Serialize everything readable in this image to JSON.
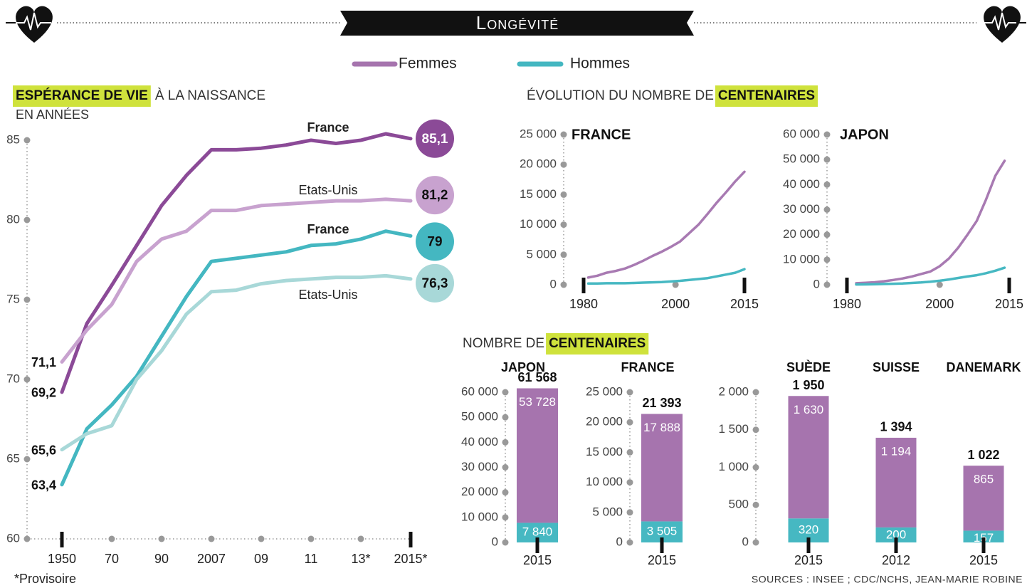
{
  "header": {
    "title": "Longévité"
  },
  "legend": [
    {
      "name": "Femmes",
      "color": "#a674ae"
    },
    {
      "name": "Hommes",
      "color": "#44b7c1"
    }
  ],
  "highlight_color": "#cfe23c",
  "sections": [
    {
      "title_parts": [
        {
          "text": "ÉVOLUTION DU NOMBRE DE"
        },
        {
          "text": "CENTENAIRES",
          "highlight": true
        }
      ]
    },
    {
      "title_parts": [
        {
          "text": "NOMBRE DE"
        },
        {
          "text": "CENTENAIRES",
          "highlight": true
        }
      ]
    }
  ],
  "sources": "SOURCES : INSEE ; CDC/NCHS, JEAN-MARIE ROBINE",
  "chart_data": [
    {
      "type": "line",
      "title_parts": [
        {
          "text": "ESPÉRANCE DE VIE",
          "highlight": true
        },
        {
          "text": "À LA NAISSANCE"
        }
      ],
      "subtitle": "EN ANNÉES",
      "note": "*Provisoire",
      "categories": [
        "1950",
        null,
        "70",
        null,
        "90",
        null,
        "2007",
        null,
        "09",
        null,
        "11",
        null,
        "13*",
        null,
        "2015*"
      ],
      "ylim": [
        60,
        85
      ],
      "yticks": [
        60,
        65,
        70,
        75,
        80,
        85
      ],
      "series": [
        {
          "name": "France",
          "color": "#8b4a97",
          "values": [
            69.2,
            73.5,
            75.9,
            78.4,
            80.9,
            82.8,
            84.4,
            84.4,
            84.5,
            84.7,
            85.0,
            84.8,
            85.0,
            85.4,
            85.1
          ],
          "value_labels": [
            "69,2",
            null,
            null,
            null,
            null,
            null,
            null,
            null,
            null,
            null,
            null,
            null,
            null,
            null,
            "85,1"
          ]
        },
        {
          "name": "Etats-Unis",
          "color": "#c8a2cf",
          "values": [
            71.1,
            73.1,
            74.7,
            77.4,
            78.8,
            79.3,
            80.6,
            80.6,
            80.9,
            81.0,
            81.1,
            81.2,
            81.2,
            81.3,
            81.2
          ],
          "value_labels": [
            "71,1",
            null,
            null,
            null,
            null,
            null,
            null,
            null,
            null,
            null,
            null,
            null,
            null,
            null,
            "81,2"
          ]
        },
        {
          "name": "France",
          "color": "#44b7c1",
          "values": [
            63.4,
            66.9,
            68.4,
            70.2,
            72.7,
            75.2,
            77.4,
            77.6,
            77.8,
            78.0,
            78.4,
            78.5,
            78.8,
            79.3,
            79
          ],
          "value_labels": [
            "63,4",
            null,
            null,
            null,
            null,
            null,
            null,
            null,
            null,
            null,
            null,
            null,
            null,
            null,
            "79"
          ]
        },
        {
          "name": "Etats-Unis",
          "color": "#a8d8d8",
          "values": [
            65.6,
            66.6,
            67.1,
            70.0,
            71.8,
            74.1,
            75.5,
            75.6,
            76.0,
            76.2,
            76.3,
            76.4,
            76.4,
            76.5,
            76.3
          ],
          "value_labels": [
            "65,6",
            null,
            null,
            null,
            null,
            null,
            null,
            null,
            null,
            null,
            null,
            null,
            null,
            null,
            "76,3"
          ]
        }
      ]
    },
    {
      "type": "line",
      "title": "FRANCE",
      "x": [
        1981,
        1983,
        1985,
        1987,
        1989,
        1991,
        1993,
        1995,
        1997,
        1999,
        2001,
        2003,
        2005,
        2007,
        2009,
        2011,
        2013,
        2015
      ],
      "xlim": [
        1980,
        2015
      ],
      "xticks": [
        1980,
        2000,
        2015
      ],
      "ylim": [
        0,
        25000
      ],
      "yticks": [
        0,
        {
          "value": 5000,
          "label": "5 000"
        },
        {
          "value": 10000,
          "label": "10 000"
        },
        {
          "value": 15000,
          "label": "15 000"
        },
        {
          "value": 20000,
          "label": "20 000"
        },
        {
          "value": 25000,
          "label": "25 000"
        }
      ],
      "series": [
        {
          "color": "#a87ab2",
          "values": [
            1200,
            1500,
            2000,
            2300,
            2700,
            3300,
            4000,
            4800,
            5500,
            6300,
            7200,
            8600,
            10000,
            11800,
            13700,
            15400,
            17200,
            18800
          ]
        },
        {
          "color": "#46b8c2",
          "values": [
            200,
            200,
            250,
            250,
            250,
            300,
            350,
            400,
            450,
            550,
            650,
            800,
            950,
            1100,
            1400,
            1700,
            2000,
            2600
          ]
        }
      ]
    },
    {
      "type": "line",
      "title": "JAPON",
      "x": [
        1982,
        1984,
        1986,
        1988,
        1990,
        1992,
        1994,
        1996,
        1998,
        2000,
        2002,
        2004,
        2006,
        2008,
        2010,
        2012,
        2014
      ],
      "xlim": [
        1980,
        2015
      ],
      "xticks": [
        1980,
        2000,
        2015
      ],
      "ylim": [
        0,
        60000
      ],
      "yticks": [
        0,
        {
          "value": 10000,
          "label": "10 000"
        },
        {
          "value": 20000,
          "label": "20 000"
        },
        {
          "value": 30000,
          "label": "30 000"
        },
        {
          "value": 40000,
          "label": "40 000"
        },
        {
          "value": 50000,
          "label": "50 000"
        },
        {
          "value": 60000,
          "label": "60 000"
        }
      ],
      "series": [
        {
          "color": "#a87ab2",
          "values": [
            600,
            800,
            1000,
            1400,
            1900,
            2500,
            3300,
            4300,
            5300,
            7400,
            10500,
            14800,
            20000,
            25500,
            34000,
            43500,
            49500
          ]
        },
        {
          "color": "#46b8c2",
          "values": [
            100,
            150,
            200,
            300,
            400,
            500,
            700,
            900,
            1200,
            1600,
            2100,
            2700,
            3300,
            3800,
            4600,
            5600,
            6800
          ]
        }
      ]
    },
    {
      "type": "bar",
      "title": "JAPON",
      "categories": [
        "2015"
      ],
      "ylim": [
        0,
        60000
      ],
      "yticks": [
        0,
        {
          "value": 10000,
          "label": "10 000"
        },
        {
          "value": 20000,
          "label": "20 000"
        },
        {
          "value": 30000,
          "label": "30 000"
        },
        {
          "value": 40000,
          "label": "40 000"
        },
        {
          "value": 50000,
          "label": "50 000"
        },
        {
          "value": 60000,
          "label": "60 000"
        }
      ],
      "series": [
        {
          "color": "#46b8c2",
          "values": [
            7840
          ],
          "value_labels": [
            "7 840"
          ]
        },
        {
          "color": "#a674ae",
          "values": [
            53728
          ],
          "value_labels": [
            "53 728"
          ]
        }
      ],
      "totals": [
        61568
      ],
      "total_labels": [
        "61 568"
      ]
    },
    {
      "type": "bar",
      "title": "FRANCE",
      "categories": [
        "2015"
      ],
      "ylim": [
        0,
        25000
      ],
      "yticks": [
        0,
        {
          "value": 5000,
          "label": "5 000"
        },
        {
          "value": 10000,
          "label": "10 000"
        },
        {
          "value": 15000,
          "label": "15 000"
        },
        {
          "value": 20000,
          "label": "20 000"
        },
        {
          "value": 25000,
          "label": "25 000"
        }
      ],
      "series": [
        {
          "color": "#46b8c2",
          "values": [
            3505
          ],
          "value_labels": [
            "3 505"
          ]
        },
        {
          "color": "#a674ae",
          "values": [
            17888
          ],
          "value_labels": [
            "17 888"
          ]
        }
      ],
      "totals": [
        21393
      ],
      "total_labels": [
        "21 393"
      ]
    },
    {
      "type": "bar",
      "group_titles": [
        "SUÈDE",
        "SUISSE",
        "DANEMARK"
      ],
      "categories": [
        "2015",
        "2012",
        "2015"
      ],
      "ylim": [
        0,
        2000
      ],
      "yticks": [
        0,
        500,
        {
          "value": 1000,
          "label": "1 000"
        },
        {
          "value": 1500,
          "label": "1 500"
        },
        {
          "value": 2000,
          "label": "2 000"
        }
      ],
      "series": [
        {
          "color": "#46b8c2",
          "values": [
            320,
            200,
            157
          ]
        },
        {
          "color": "#a674ae",
          "values": [
            1630,
            1194,
            865
          ],
          "value_labels": [
            "1 630",
            "1 194",
            "865"
          ]
        }
      ],
      "totals": [
        1950,
        1394,
        1022
      ],
      "total_labels": [
        "1 950",
        "1 394",
        "1 022"
      ]
    }
  ]
}
